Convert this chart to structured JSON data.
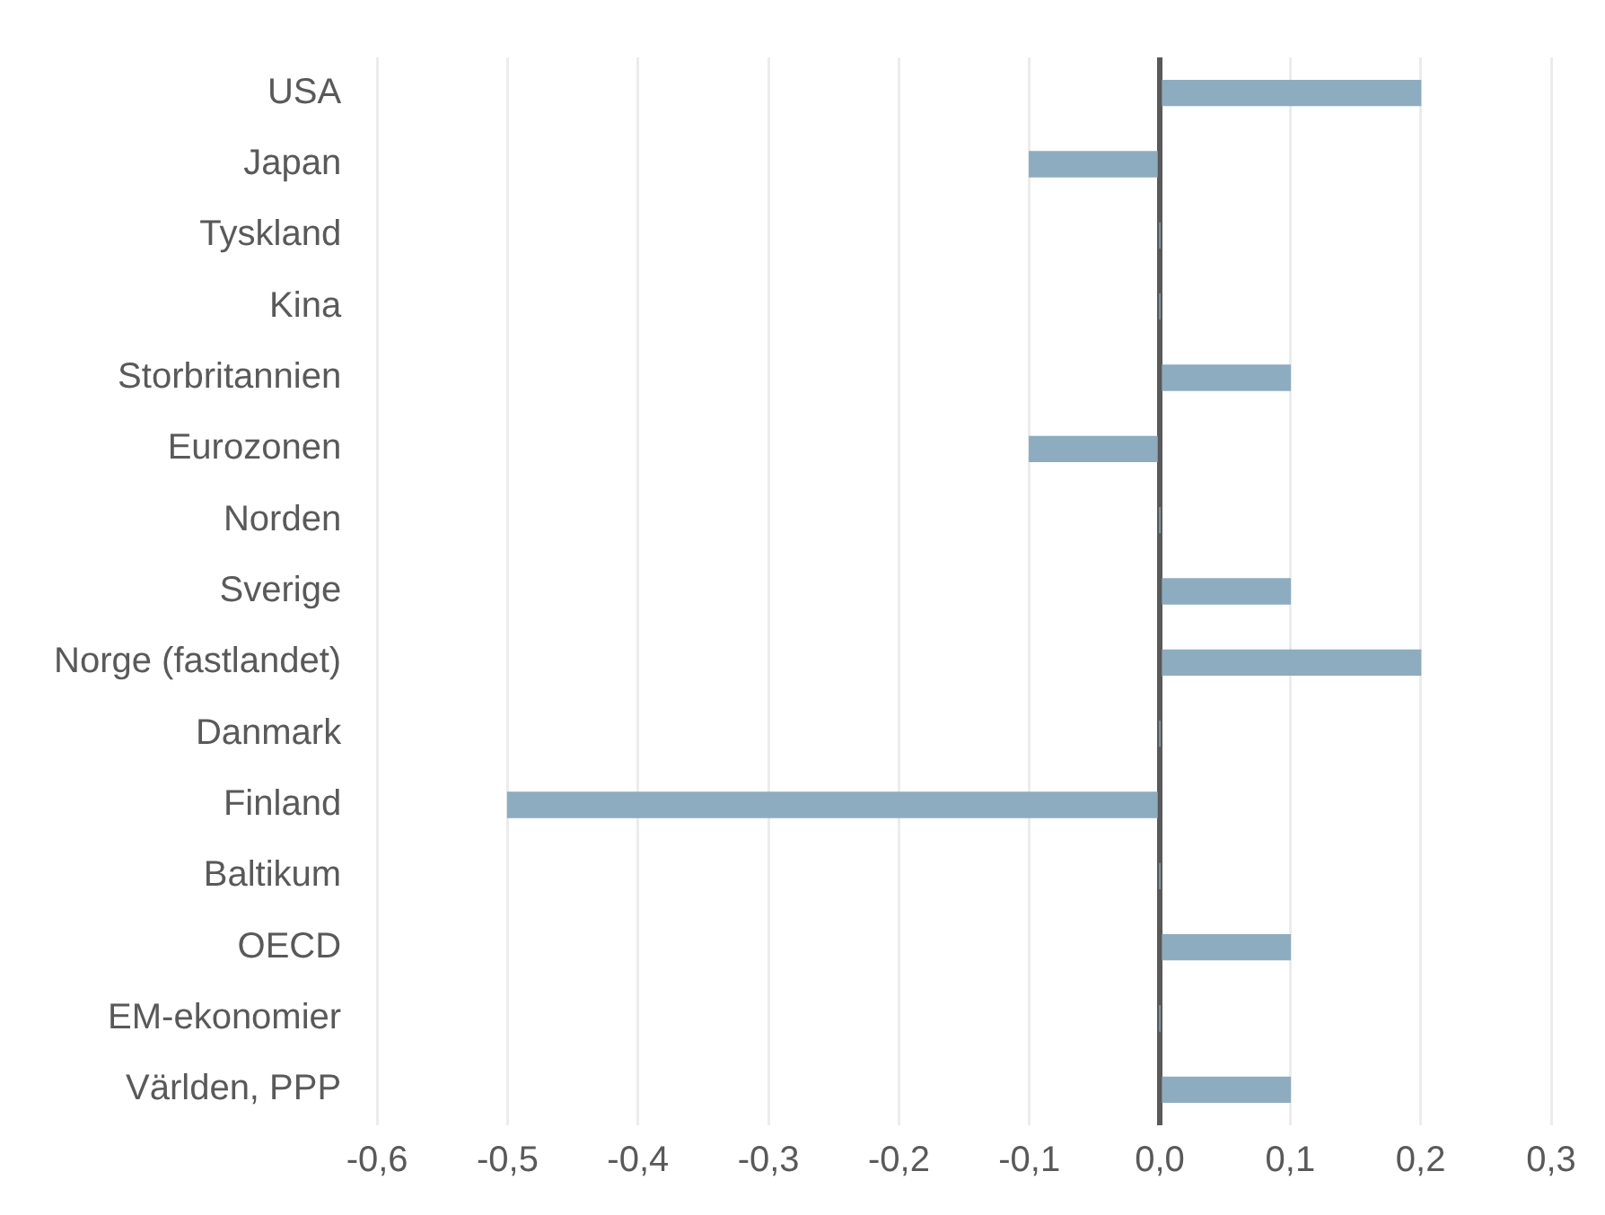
{
  "chart_data": {
    "type": "bar",
    "orientation": "horizontal",
    "categories": [
      "USA",
      "Japan",
      "Tyskland",
      "Kina",
      "Storbritannien",
      "Eurozonen",
      "Norden",
      "Sverige",
      "Norge (fastlandet)",
      "Danmark",
      "Finland",
      "Baltikum",
      "OECD",
      "EM-ekonomier",
      "Världen, PPP"
    ],
    "values": [
      0.2,
      -0.1,
      0,
      0,
      0.1,
      -0.1,
      0,
      0.1,
      0.2,
      0,
      -0.5,
      0,
      0.1,
      0,
      0.1
    ],
    "color": "#8eacbf",
    "xlim": [
      -0.6,
      0.3
    ],
    "xticks": [
      {
        "value": -0.6,
        "label": "-0,6"
      },
      {
        "value": -0.5,
        "label": "-0,5"
      },
      {
        "value": -0.4,
        "label": "-0,4"
      },
      {
        "value": -0.3,
        "label": "-0,3"
      },
      {
        "value": -0.2,
        "label": "-0,2"
      },
      {
        "value": -0.1,
        "label": "-0,1"
      },
      {
        "value": 0,
        "label": "0,0"
      },
      {
        "value": 0.1,
        "label": "0,1"
      },
      {
        "value": 0.2,
        "label": "0,2"
      },
      {
        "value": 0.3,
        "label": "0,3"
      }
    ],
    "grid": "x",
    "legend": false
  }
}
